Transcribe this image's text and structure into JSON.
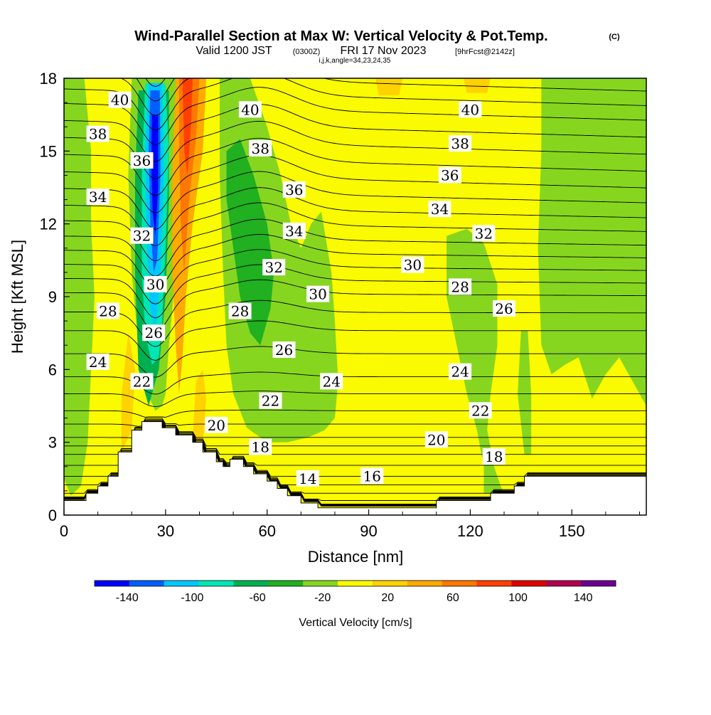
{
  "chart_data": {
    "type": "heatmap",
    "title": "Wind-Parallel Section at Max W: Vertical Velocity & Pot.Temp.",
    "title_mark": "(C)",
    "subtitle_main": "Valid 1200 JST",
    "subtitle_utc": "(0300Z)",
    "subtitle_date": "FRI 17 Nov 2023",
    "subtitle_fcst": "[9hrFcst@2142z]",
    "subtitle_indices": "i,j,k,angle=34,23,24,35",
    "xlabel": "Distance [nm]",
    "ylabel": "Height [Kft MSL]",
    "xlim": [
      0,
      172
    ],
    "ylim": [
      0,
      18
    ],
    "x_ticks": [
      0,
      30,
      60,
      90,
      120,
      150
    ],
    "y_ticks": [
      0,
      3,
      6,
      9,
      12,
      15,
      18
    ],
    "x_tick_labels": [
      "0",
      "30",
      "60",
      "90",
      "120",
      "150"
    ],
    "y_tick_labels": [
      "0",
      "3",
      "6",
      "9",
      "12",
      "15",
      "18"
    ],
    "colorbar": {
      "label": "Vertical Velocity [cm/s]",
      "bounds": [
        -160,
        160
      ],
      "step": 20,
      "tick_values": [
        -140,
        -100,
        -60,
        -20,
        20,
        60,
        100,
        140
      ],
      "tick_labels": [
        "-140",
        "-100",
        "-60",
        "-20",
        "20",
        "60",
        "100",
        "140"
      ],
      "colors": [
        "#0000ff",
        "#0060ff",
        "#00c8ff",
        "#00e6b4",
        "#00b050",
        "#20b020",
        "#86d620",
        "#fafa00",
        "#ffd200",
        "#ffaa00",
        "#ff7800",
        "#ff4000",
        "#e00000",
        "#b00050",
        "#6a0090"
      ]
    },
    "series": [
      {
        "name": "Potential Temperature (C)",
        "contour_labels": [
          {
            "text": "40",
            "x": 16.5,
            "y": 17.1
          },
          {
            "text": "38",
            "x": 10,
            "y": 15.7
          },
          {
            "text": "34",
            "x": 10,
            "y": 13.1
          },
          {
            "text": "28",
            "x": 13,
            "y": 8.4
          },
          {
            "text": "24",
            "x": 10,
            "y": 6.3
          },
          {
            "text": "36",
            "x": 23,
            "y": 14.6
          },
          {
            "text": "32",
            "x": 23,
            "y": 11.5
          },
          {
            "text": "30",
            "x": 27,
            "y": 9.5
          },
          {
            "text": "26",
            "x": 26.5,
            "y": 7.5
          },
          {
            "text": "22",
            "x": 23,
            "y": 5.5
          },
          {
            "text": "20",
            "x": 45,
            "y": 3.7
          },
          {
            "text": "40",
            "x": 55,
            "y": 16.7
          },
          {
            "text": "38",
            "x": 58,
            "y": 15.1
          },
          {
            "text": "36",
            "x": 68,
            "y": 13.4
          },
          {
            "text": "34",
            "x": 68,
            "y": 11.7
          },
          {
            "text": "32",
            "x": 62,
            "y": 10.2
          },
          {
            "text": "28",
            "x": 52,
            "y": 8.4
          },
          {
            "text": "26",
            "x": 65,
            "y": 6.8
          },
          {
            "text": "22",
            "x": 61,
            "y": 4.7
          },
          {
            "text": "30",
            "x": 75,
            "y": 9.1
          },
          {
            "text": "24",
            "x": 79,
            "y": 5.5
          },
          {
            "text": "18",
            "x": 58,
            "y": 2.8
          },
          {
            "text": "14",
            "x": 72,
            "y": 1.5
          },
          {
            "text": "16",
            "x": 91,
            "y": 1.6
          },
          {
            "text": "40",
            "x": 120,
            "y": 16.7
          },
          {
            "text": "38",
            "x": 117,
            "y": 15.3
          },
          {
            "text": "36",
            "x": 114,
            "y": 14.0
          },
          {
            "text": "34",
            "x": 111,
            "y": 12.6
          },
          {
            "text": "32",
            "x": 124,
            "y": 11.6
          },
          {
            "text": "30",
            "x": 103,
            "y": 10.3
          },
          {
            "text": "28",
            "x": 117,
            "y": 9.4
          },
          {
            "text": "26",
            "x": 130,
            "y": 8.5
          },
          {
            "text": "24",
            "x": 117,
            "y": 5.9
          },
          {
            "text": "22",
            "x": 123,
            "y": 4.3
          },
          {
            "text": "20",
            "x": 110,
            "y": 3.1
          },
          {
            "text": "18",
            "x": 127,
            "y": 2.4
          }
        ]
      }
    ]
  }
}
